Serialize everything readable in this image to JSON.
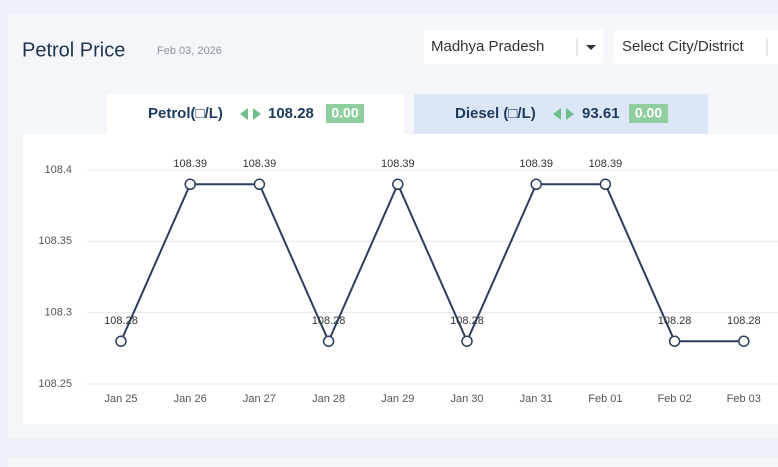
{
  "header": {
    "title": "Petrol Price",
    "date": "Feb 03, 2026",
    "state_select": "Madhya Pradesh",
    "city_select": "Select City/District"
  },
  "tabs": [
    {
      "label": "Petrol(□/L)",
      "price": "108.28",
      "change": "0.00"
    },
    {
      "label": "Diesel (□/L)",
      "price": "93.61",
      "change": "0.00"
    }
  ],
  "chart_data": {
    "type": "line",
    "categories": [
      "Jan 25",
      "Jan 26",
      "Jan 27",
      "Jan 28",
      "Jan 29",
      "Jan 30",
      "Jan 31",
      "Feb 01",
      "Feb 02",
      "Feb 03"
    ],
    "values": [
      108.28,
      108.39,
      108.39,
      108.28,
      108.39,
      108.28,
      108.39,
      108.39,
      108.28,
      108.28
    ],
    "color": "#2c3e5c",
    "ylim": [
      108.25,
      108.4
    ],
    "yticks": [
      108.25,
      108.3,
      108.35,
      108.4
    ],
    "grid": true
  }
}
